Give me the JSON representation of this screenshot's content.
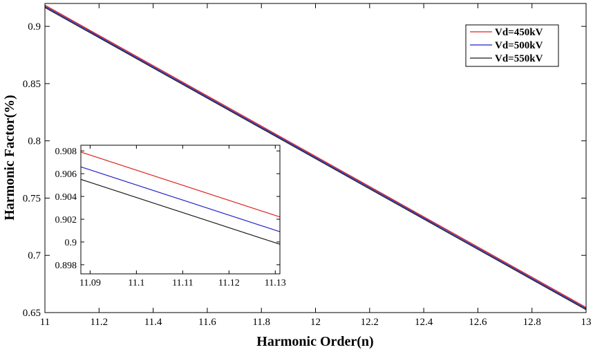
{
  "chart_data": [
    {
      "type": "line",
      "title": "",
      "xlabel": "Harmonic Order(n)",
      "ylabel": "Harmonic Factor(%)",
      "xlim": [
        11,
        13
      ],
      "ylim": [
        0.65,
        0.92
      ],
      "xticks": [
        "11",
        "11.2",
        "11.4",
        "11.6",
        "11.8",
        "12",
        "12.2",
        "12.4",
        "12.6",
        "12.8",
        "13"
      ],
      "yticks": [
        "0.65",
        "0.7",
        "0.75",
        "0.8",
        "0.85",
        "0.9"
      ],
      "grid": false,
      "legend": "top-right",
      "series": [
        {
          "name": "Vd=450kV",
          "color": "#e0201c",
          "x": [
            11,
            13
          ],
          "y": [
            0.9185,
            0.6545
          ]
        },
        {
          "name": "Vd=500kV",
          "color": "#2222c8",
          "x": [
            11,
            13
          ],
          "y": [
            0.9175,
            0.6535
          ]
        },
        {
          "name": "Vd=550kV",
          "color": "#1a1a1a",
          "x": [
            11,
            13
          ],
          "y": [
            0.9165,
            0.6525
          ]
        }
      ]
    },
    {
      "type": "line",
      "title": "",
      "xlabel": "",
      "ylabel": "",
      "xlim": [
        11.088,
        11.131
      ],
      "ylim": [
        0.8972,
        0.9085
      ],
      "xticks": [
        "11.09",
        "11.1",
        "11.11",
        "11.12",
        "11.13"
      ],
      "yticks": [
        "0.898",
        "0.9",
        "0.902",
        "0.904",
        "0.906",
        "0.908"
      ],
      "grid": false,
      "series": [
        {
          "name": "Vd=450kV",
          "color": "#e0201c",
          "x": [
            11.088,
            11.131
          ],
          "y": [
            0.9079,
            0.9022
          ]
        },
        {
          "name": "Vd=500kV",
          "color": "#2222c8",
          "x": [
            11.088,
            11.131
          ],
          "y": [
            0.9066,
            0.9009
          ]
        },
        {
          "name": "Vd=550kV",
          "color": "#1a1a1a",
          "x": [
            11.088,
            11.131
          ],
          "y": [
            0.9055,
            0.8998
          ]
        }
      ]
    }
  ]
}
